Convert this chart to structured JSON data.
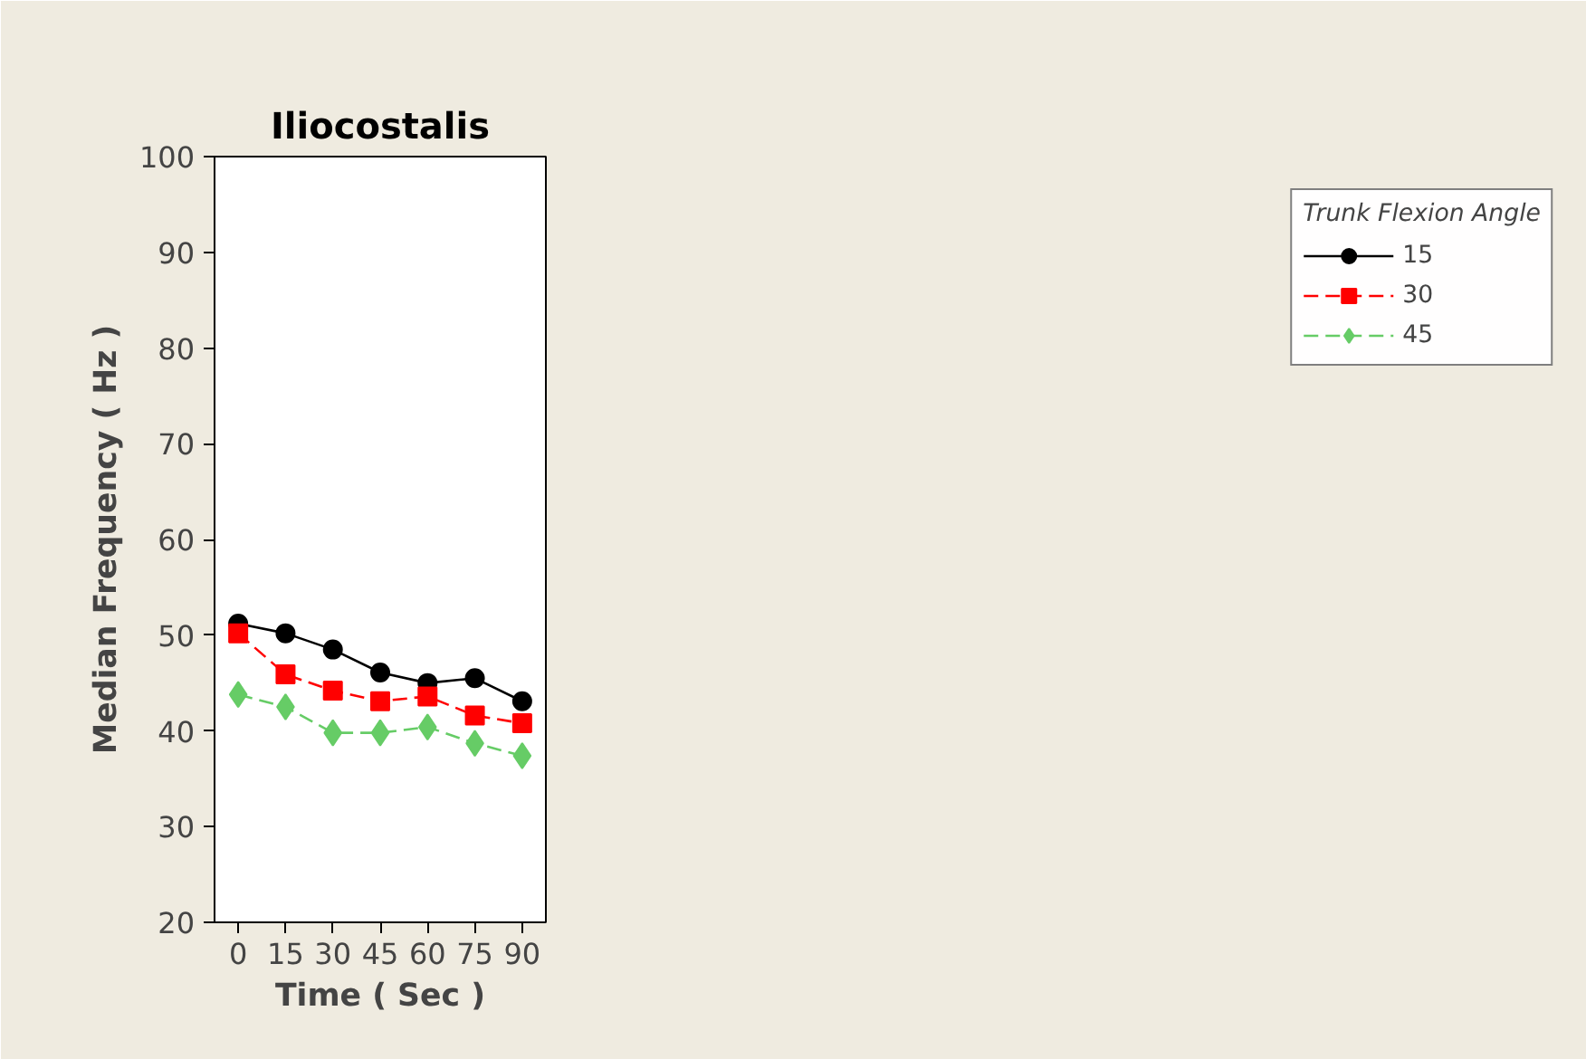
{
  "chart_data": {
    "type": "line",
    "title": "Iliocostalis",
    "xlabel": "Time ( Sec )",
    "ylabel": "Median Frequency ( Hz )",
    "legend_title": "Trunk Flexion Angle",
    "legend": "right",
    "x": [
      0,
      15,
      30,
      45,
      60,
      75,
      90
    ],
    "xlim": [
      -7.5,
      97.5
    ],
    "xticks": [
      0,
      15,
      30,
      45,
      60,
      75,
      90
    ],
    "ylim": [
      20,
      100
    ],
    "yticks": [
      20,
      30,
      40,
      50,
      60,
      70,
      80,
      90,
      100
    ],
    "grid": false,
    "series": [
      {
        "name": "15",
        "color": "#000000",
        "marker": "circle",
        "line_style": "solid",
        "values": [
          51.2,
          50.2,
          48.5,
          46.1,
          45.0,
          45.5,
          43.1
        ]
      },
      {
        "name": "30",
        "color": "#ff0000",
        "marker": "square",
        "line_style": "dashed",
        "values": [
          50.2,
          45.9,
          44.2,
          43.1,
          43.6,
          41.6,
          40.8
        ]
      },
      {
        "name": "45",
        "color": "#66cc66",
        "marker": "diamond",
        "line_style": "dashed",
        "values": [
          43.8,
          42.5,
          39.8,
          39.8,
          40.4,
          38.7,
          37.4
        ]
      }
    ]
  }
}
